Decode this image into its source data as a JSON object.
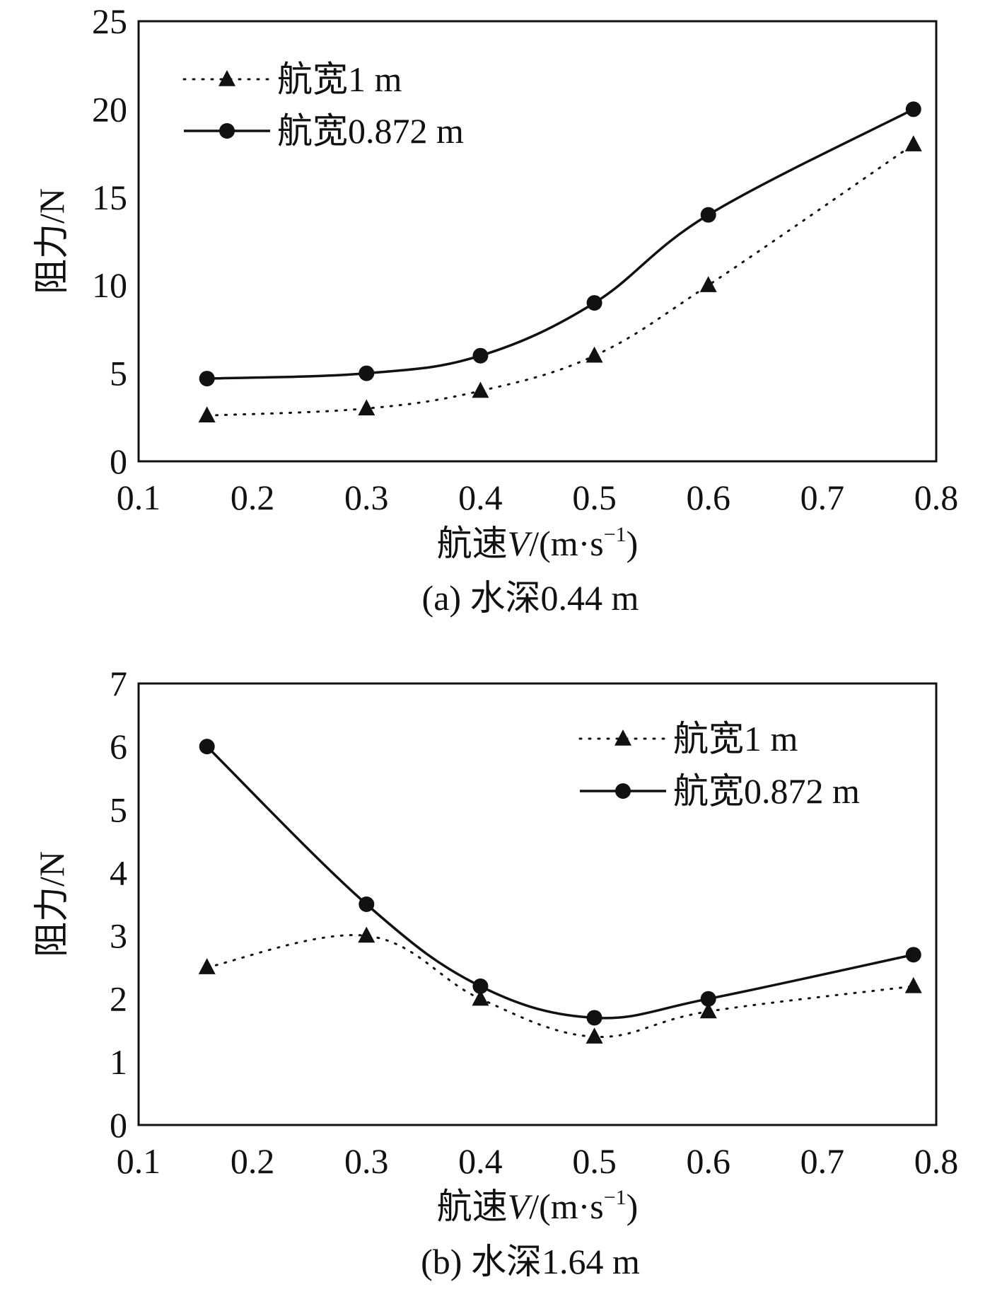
{
  "chart_data": [
    {
      "type": "line",
      "caption": "(a) 水深0.44 m",
      "xlabel_prefix": "航速",
      "xlabel_var": "V",
      "xlabel_unit": "/(m·s",
      "xlabel_sup": "−1",
      "xlabel_close": ")",
      "ylabel": "阻力/N",
      "xlim": [
        0.1,
        0.8
      ],
      "ylim": [
        0,
        25
      ],
      "xticks": [
        "0.1",
        "0.2",
        "0.3",
        "0.4",
        "0.5",
        "0.6",
        "0.7",
        "0.8"
      ],
      "yticks": [
        "0",
        "5",
        "10",
        "15",
        "20",
        "25"
      ],
      "legend_position": "top-left",
      "series": [
        {
          "name": "航宽1 m",
          "style": "dotted",
          "marker": "triangle",
          "x": [
            0.16,
            0.3,
            0.4,
            0.5,
            0.6,
            0.78
          ],
          "y": [
            2.6,
            3.0,
            4.0,
            6.0,
            10.0,
            18.0
          ]
        },
        {
          "name": "航宽0.872 m",
          "style": "solid",
          "marker": "circle",
          "x": [
            0.16,
            0.3,
            0.4,
            0.5,
            0.6,
            0.78
          ],
          "y": [
            4.7,
            5.0,
            6.0,
            9.0,
            14.0,
            20.0
          ]
        }
      ]
    },
    {
      "type": "line",
      "caption": "(b) 水深1.64 m",
      "xlabel_prefix": "航速",
      "xlabel_var": "V",
      "xlabel_unit": "/(m·s",
      "xlabel_sup": "−1",
      "xlabel_close": ")",
      "ylabel": "阻力/N",
      "xlim": [
        0.1,
        0.8
      ],
      "ylim": [
        0,
        7
      ],
      "xticks": [
        "0.1",
        "0.2",
        "0.3",
        "0.4",
        "0.5",
        "0.6",
        "0.7",
        "0.8"
      ],
      "yticks": [
        "0",
        "1",
        "2",
        "3",
        "4",
        "5",
        "6",
        "7"
      ],
      "legend_position": "top-right",
      "series": [
        {
          "name": "航宽1 m",
          "style": "dotted",
          "marker": "triangle",
          "x": [
            0.16,
            0.3,
            0.4,
            0.5,
            0.6,
            0.78
          ],
          "y": [
            2.5,
            3.0,
            2.0,
            1.4,
            1.8,
            2.2
          ]
        },
        {
          "name": "航宽0.872 m",
          "style": "solid",
          "marker": "circle",
          "x": [
            0.16,
            0.3,
            0.4,
            0.5,
            0.6,
            0.78
          ],
          "y": [
            6.0,
            3.5,
            2.2,
            1.7,
            2.0,
            2.7
          ]
        }
      ]
    }
  ]
}
